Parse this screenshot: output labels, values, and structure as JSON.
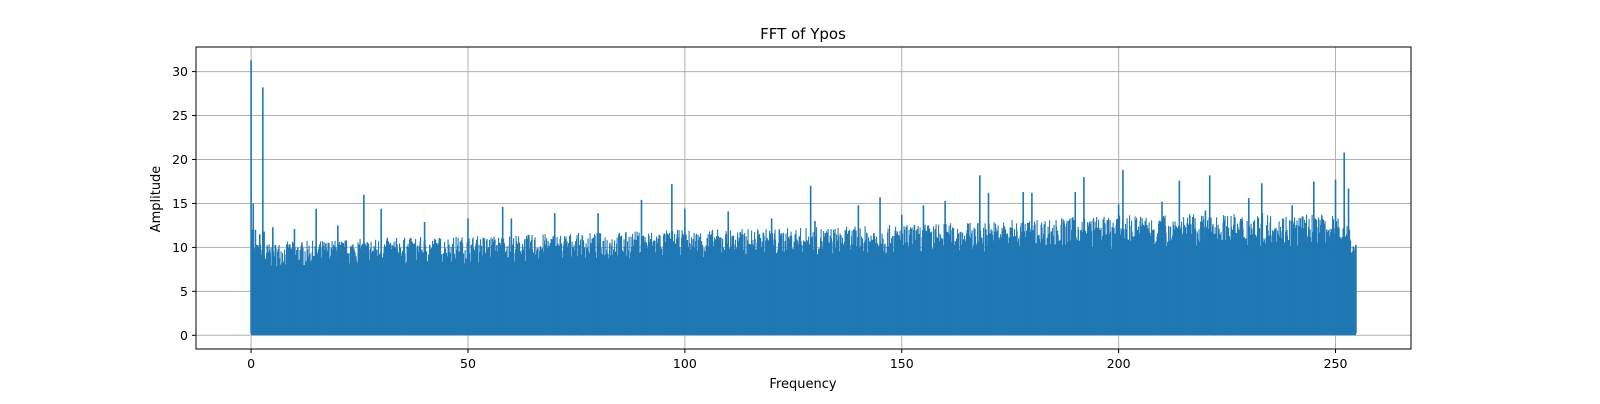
{
  "chart_data": {
    "type": "line",
    "title": "FFT of Ypos",
    "xlabel": "Frequency",
    "ylabel": "Amplitude",
    "xlim": [
      -12.7,
      267.4
    ],
    "ylim": [
      -1.56,
      32.8
    ],
    "xticks": [
      0,
      50,
      100,
      150,
      200,
      250
    ],
    "yticks": [
      0,
      5,
      10,
      15,
      20,
      25,
      30
    ],
    "grid": true,
    "color": "#1f77b4",
    "series": [
      {
        "x": [
          0,
          0.2,
          0.5,
          1,
          2,
          2.7,
          3,
          5,
          10,
          15,
          20,
          26,
          30,
          40,
          50,
          58,
          60,
          70,
          80,
          90,
          97,
          100,
          110,
          120,
          129,
          130,
          140,
          145,
          150,
          155,
          160,
          168,
          170,
          178,
          180,
          190,
          192,
          200,
          201,
          210,
          214,
          220,
          221,
          230,
          233,
          240,
          245,
          250,
          252,
          253,
          254.7
        ],
        "y": [
          31.3,
          12.0,
          15.0,
          12.0,
          11.5,
          28.2,
          11.8,
          12.3,
          12.1,
          14.4,
          12.5,
          16.0,
          14.4,
          12.9,
          13.3,
          14.6,
          13.3,
          13.9,
          13.9,
          15.4,
          17.2,
          14.4,
          14.1,
          13.3,
          17.0,
          13.0,
          14.8,
          15.7,
          13.7,
          14.8,
          15.3,
          18.2,
          16.2,
          16.3,
          16.2,
          16.3,
          18.0,
          14.9,
          18.8,
          15.2,
          17.6,
          14.2,
          18.2,
          15.6,
          17.3,
          14.8,
          17.5,
          17.7,
          20.8,
          16.7,
          10.3
        ],
        "noise_ceiling": [
          10.5,
          10.5,
          10.5,
          10.5,
          10.5,
          10.5,
          10.5,
          10.6,
          10.7,
          10.8,
          10.9,
          11.0,
          11.1,
          11.2,
          11.3,
          11.4,
          11.4,
          11.6,
          11.7,
          11.9,
          12.0,
          12.0,
          12.1,
          12.2,
          12.3,
          12.3,
          12.4,
          12.5,
          12.6,
          12.7,
          12.8,
          12.9,
          13.0,
          13.2,
          13.2,
          13.5,
          13.5,
          13.6,
          13.7,
          13.7,
          13.8,
          13.8,
          13.8,
          13.8,
          13.9,
          13.8,
          13.8,
          13.7,
          13.6,
          13.0,
          10.3
        ]
      }
    ]
  }
}
